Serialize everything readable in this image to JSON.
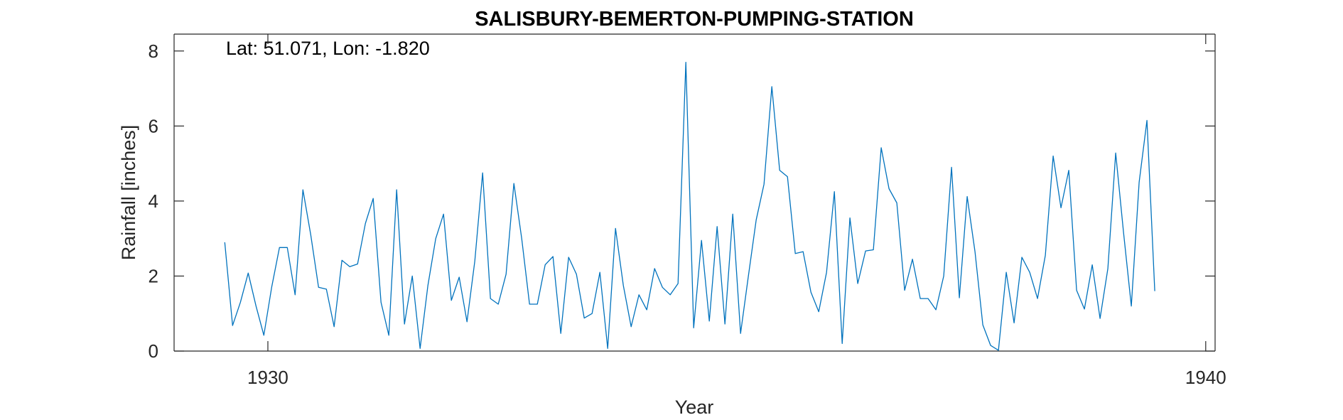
{
  "chart_data": {
    "type": "line",
    "title": "SALISBURY-BEMERTON-PUMPING-STATION",
    "xlabel": "Year",
    "ylabel": "Rainfall [inches]",
    "annotation": "Lat: 51.071, Lon: -1.820",
    "xlim": [
      1929,
      1940.1
    ],
    "ylim": [
      0,
      8.45
    ],
    "xticks": [
      1930,
      1940
    ],
    "xtick_labels": [
      "1930",
      "1940"
    ],
    "yticks": [
      0,
      2,
      4,
      6,
      8
    ],
    "ytick_labels": [
      "0",
      "2",
      "4",
      "6",
      "8"
    ],
    "grid": false,
    "line_color": "#0072BD",
    "series": [
      {
        "x_start": 1929.54,
        "x_step": 0.0833333,
        "values": [
          2.9,
          0.68,
          1.3,
          2.08,
          1.2,
          0.42,
          1.7,
          2.76,
          2.76,
          1.5,
          4.3,
          3.1,
          1.7,
          1.65,
          0.65,
          2.42,
          2.25,
          2.32,
          3.4,
          4.07,
          1.3,
          0.42,
          4.3,
          0.72,
          2.0,
          0.07,
          1.75,
          3.0,
          3.65,
          1.35,
          1.97,
          0.78,
          2.4,
          4.75,
          1.4,
          1.25,
          2.05,
          4.47,
          3.0,
          1.25,
          1.25,
          2.3,
          2.52,
          0.47,
          2.5,
          2.05,
          0.88,
          1.0,
          2.1,
          0.07,
          3.27,
          1.75,
          0.65,
          1.5,
          1.1,
          2.2,
          1.7,
          1.5,
          1.8,
          7.7,
          0.62,
          2.95,
          0.8,
          3.32,
          0.72,
          3.65,
          0.47,
          2.0,
          3.5,
          4.45,
          7.05,
          4.82,
          4.65,
          2.6,
          2.65,
          1.57,
          1.05,
          2.1,
          4.25,
          0.2,
          3.55,
          1.8,
          2.67,
          2.7,
          5.42,
          4.33,
          3.95,
          1.62,
          2.45,
          1.4,
          1.4,
          1.1,
          2.0,
          4.9,
          1.42,
          4.12,
          2.65,
          0.7,
          0.15,
          0.02,
          2.1,
          0.75,
          2.5,
          2.1,
          1.4,
          2.55,
          5.2,
          3.82,
          4.82,
          1.62,
          1.12,
          2.3,
          0.87,
          2.2,
          5.28,
          3.17,
          1.2,
          4.5,
          6.15,
          1.6
        ]
      }
    ]
  }
}
